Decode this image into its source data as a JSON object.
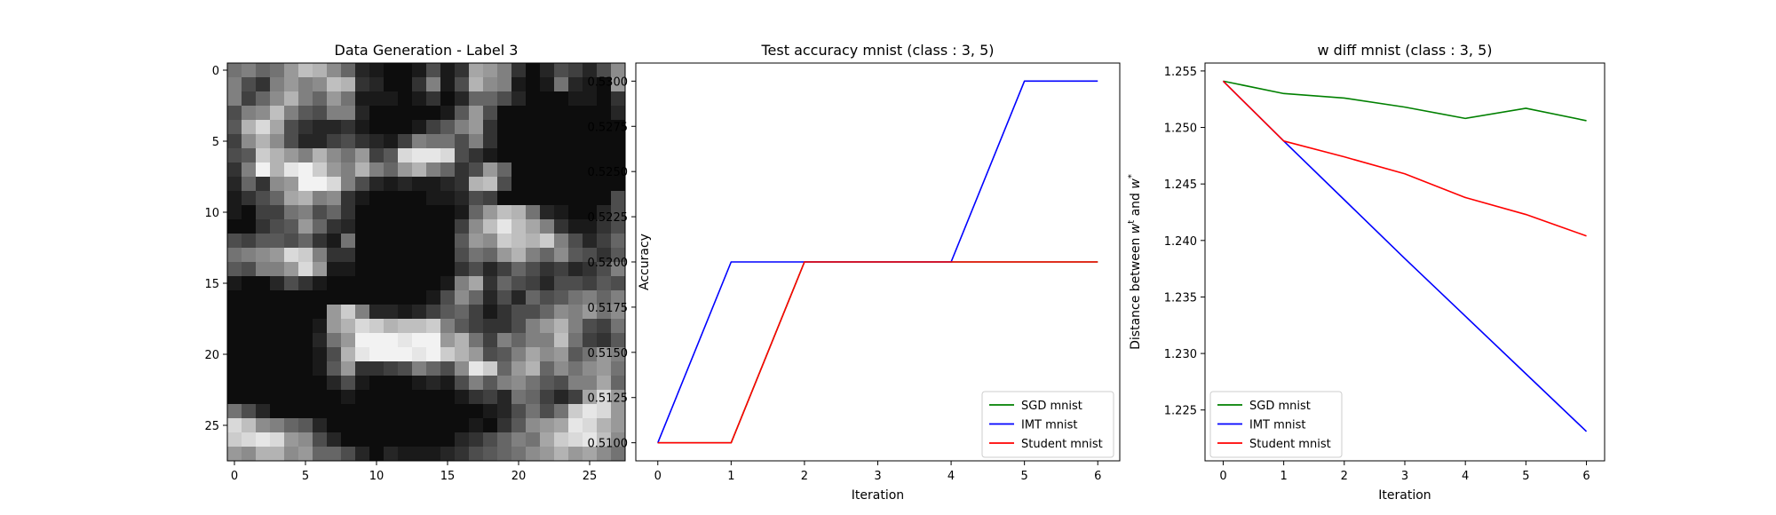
{
  "chart_data": [
    {
      "type": "heatmap",
      "title": "Data Generation - Label 3",
      "xlabel": "",
      "ylabel": "",
      "rows": 28,
      "cols": 28,
      "xticks": [
        0,
        5,
        10,
        15,
        20,
        25
      ],
      "yticks": [
        0,
        5,
        10,
        15,
        20,
        25
      ],
      "colormap": "gray",
      "value_range": [
        0,
        1
      ],
      "grid": false,
      "note_values": "pixel intensities 0 (black) to 1 (white), estimated per cell",
      "values": [
        [
          0.45,
          0.5,
          0.4,
          0.45,
          0.6,
          0.75,
          0.7,
          0.55,
          0.4,
          0.15,
          0.1,
          0.05,
          0.05,
          0.1,
          0.3,
          0.1,
          0.2,
          0.65,
          0.6,
          0.5,
          0.2,
          0.05,
          0.15,
          0.3,
          0.25,
          0.15,
          0.3,
          0.55
        ],
        [
          0.5,
          0.3,
          0.2,
          0.5,
          0.6,
          0.5,
          0.55,
          0.75,
          0.7,
          0.2,
          0.15,
          0.05,
          0.05,
          0.2,
          0.5,
          0.1,
          0.3,
          0.7,
          0.55,
          0.5,
          0.1,
          0.05,
          0.1,
          0.45,
          0.15,
          0.1,
          0.05,
          0.6
        ],
        [
          0.5,
          0.25,
          0.4,
          0.55,
          0.7,
          0.5,
          0.4,
          0.6,
          0.45,
          0.1,
          0.1,
          0.1,
          0.05,
          0.1,
          0.2,
          0.05,
          0.15,
          0.4,
          0.4,
          0.3,
          0.15,
          0.05,
          0.05,
          0.05,
          0.1,
          0.1,
          0.05,
          0.2
        ],
        [
          0.3,
          0.5,
          0.55,
          0.75,
          0.5,
          0.35,
          0.3,
          0.5,
          0.5,
          0.15,
          0.05,
          0.05,
          0.05,
          0.05,
          0.05,
          0.1,
          0.35,
          0.6,
          0.3,
          0.05,
          0.05,
          0.05,
          0.05,
          0.05,
          0.05,
          0.05,
          0.05,
          0.15
        ],
        [
          0.35,
          0.7,
          0.85,
          0.65,
          0.3,
          0.2,
          0.15,
          0.15,
          0.2,
          0.1,
          0.05,
          0.05,
          0.05,
          0.1,
          0.25,
          0.35,
          0.5,
          0.6,
          0.2,
          0.05,
          0.05,
          0.05,
          0.05,
          0.05,
          0.05,
          0.05,
          0.05,
          0.05
        ],
        [
          0.25,
          0.55,
          0.7,
          0.55,
          0.3,
          0.15,
          0.15,
          0.25,
          0.3,
          0.2,
          0.15,
          0.1,
          0.25,
          0.5,
          0.45,
          0.45,
          0.3,
          0.5,
          0.2,
          0.05,
          0.05,
          0.05,
          0.05,
          0.05,
          0.05,
          0.05,
          0.05,
          0.05
        ],
        [
          0.3,
          0.35,
          0.8,
          0.7,
          0.6,
          0.5,
          0.7,
          0.55,
          0.45,
          0.6,
          0.25,
          0.35,
          0.85,
          0.9,
          0.9,
          0.85,
          0.3,
          0.2,
          0.1,
          0.05,
          0.05,
          0.05,
          0.05,
          0.05,
          0.05,
          0.05,
          0.05,
          0.05
        ],
        [
          0.2,
          0.5,
          0.95,
          0.7,
          0.9,
          0.95,
          0.8,
          0.6,
          0.5,
          0.7,
          0.5,
          0.4,
          0.6,
          0.7,
          0.5,
          0.4,
          0.2,
          0.3,
          0.6,
          0.4,
          0.05,
          0.05,
          0.05,
          0.05,
          0.05,
          0.05,
          0.05,
          0.05
        ],
        [
          0.15,
          0.4,
          0.2,
          0.55,
          0.6,
          0.95,
          0.95,
          0.85,
          0.5,
          0.3,
          0.15,
          0.1,
          0.15,
          0.1,
          0.1,
          0.15,
          0.2,
          0.7,
          0.75,
          0.3,
          0.05,
          0.05,
          0.05,
          0.05,
          0.05,
          0.05,
          0.05,
          0.05
        ],
        [
          0.1,
          0.2,
          0.3,
          0.4,
          0.65,
          0.7,
          0.5,
          0.55,
          0.2,
          0.1,
          0.05,
          0.05,
          0.05,
          0.05,
          0.1,
          0.1,
          0.15,
          0.3,
          0.25,
          0.05,
          0.05,
          0.05,
          0.05,
          0.05,
          0.05,
          0.05,
          0.05,
          0.3
        ],
        [
          0.1,
          0.05,
          0.25,
          0.25,
          0.45,
          0.5,
          0.3,
          0.4,
          0.2,
          0.05,
          0.05,
          0.05,
          0.05,
          0.05,
          0.05,
          0.05,
          0.1,
          0.4,
          0.6,
          0.75,
          0.7,
          0.45,
          0.15,
          0.1,
          0.05,
          0.05,
          0.15,
          0.3
        ],
        [
          0.05,
          0.05,
          0.2,
          0.3,
          0.35,
          0.6,
          0.4,
          0.2,
          0.15,
          0.05,
          0.05,
          0.05,
          0.05,
          0.05,
          0.05,
          0.05,
          0.25,
          0.55,
          0.75,
          0.9,
          0.75,
          0.65,
          0.5,
          0.2,
          0.1,
          0.1,
          0.2,
          0.3
        ],
        [
          0.3,
          0.25,
          0.35,
          0.35,
          0.3,
          0.4,
          0.2,
          0.1,
          0.45,
          0.05,
          0.05,
          0.05,
          0.05,
          0.05,
          0.05,
          0.05,
          0.35,
          0.6,
          0.55,
          0.8,
          0.75,
          0.7,
          0.8,
          0.5,
          0.3,
          0.15,
          0.25,
          0.4
        ],
        [
          0.45,
          0.5,
          0.55,
          0.6,
          0.85,
          0.8,
          0.5,
          0.2,
          0.2,
          0.05,
          0.05,
          0.05,
          0.05,
          0.05,
          0.05,
          0.05,
          0.3,
          0.45,
          0.4,
          0.6,
          0.7,
          0.5,
          0.4,
          0.55,
          0.35,
          0.3,
          0.2,
          0.35
        ],
        [
          0.35,
          0.3,
          0.5,
          0.5,
          0.6,
          0.85,
          0.6,
          0.1,
          0.1,
          0.05,
          0.05,
          0.05,
          0.05,
          0.05,
          0.05,
          0.05,
          0.2,
          0.3,
          0.15,
          0.25,
          0.4,
          0.3,
          0.2,
          0.25,
          0.15,
          0.2,
          0.3,
          0.5
        ],
        [
          0.1,
          0.05,
          0.05,
          0.15,
          0.3,
          0.2,
          0.1,
          0.05,
          0.05,
          0.05,
          0.05,
          0.05,
          0.05,
          0.05,
          0.05,
          0.1,
          0.5,
          0.65,
          0.2,
          0.4,
          0.3,
          0.25,
          0.15,
          0.3,
          0.3,
          0.25,
          0.35,
          0.3
        ],
        [
          0.05,
          0.05,
          0.05,
          0.05,
          0.05,
          0.05,
          0.05,
          0.05,
          0.05,
          0.05,
          0.05,
          0.05,
          0.05,
          0.05,
          0.1,
          0.3,
          0.55,
          0.4,
          0.15,
          0.3,
          0.15,
          0.4,
          0.3,
          0.35,
          0.45,
          0.5,
          0.4,
          0.5
        ],
        [
          0.05,
          0.05,
          0.05,
          0.05,
          0.05,
          0.05,
          0.05,
          0.6,
          0.8,
          0.5,
          0.15,
          0.15,
          0.1,
          0.15,
          0.25,
          0.35,
          0.4,
          0.25,
          0.1,
          0.2,
          0.3,
          0.3,
          0.4,
          0.55,
          0.5,
          0.6,
          0.45,
          0.55
        ],
        [
          0.05,
          0.05,
          0.05,
          0.05,
          0.05,
          0.05,
          0.1,
          0.6,
          0.7,
          0.85,
          0.8,
          0.7,
          0.75,
          0.75,
          0.8,
          0.5,
          0.35,
          0.25,
          0.2,
          0.2,
          0.3,
          0.5,
          0.6,
          0.7,
          0.5,
          0.3,
          0.25,
          0.45
        ],
        [
          0.05,
          0.05,
          0.05,
          0.05,
          0.05,
          0.05,
          0.15,
          0.45,
          0.6,
          0.95,
          0.95,
          0.95,
          0.9,
          0.95,
          0.95,
          0.6,
          0.7,
          0.45,
          0.25,
          0.5,
          0.4,
          0.5,
          0.5,
          0.75,
          0.45,
          0.25,
          0.2,
          0.35
        ],
        [
          0.05,
          0.05,
          0.05,
          0.05,
          0.05,
          0.05,
          0.1,
          0.3,
          0.7,
          0.9,
          0.95,
          0.95,
          0.95,
          0.9,
          0.95,
          0.8,
          0.7,
          0.6,
          0.3,
          0.35,
          0.5,
          0.65,
          0.55,
          0.6,
          0.35,
          0.45,
          0.6,
          0.5
        ],
        [
          0.05,
          0.05,
          0.05,
          0.05,
          0.05,
          0.05,
          0.1,
          0.35,
          0.6,
          0.2,
          0.2,
          0.25,
          0.3,
          0.5,
          0.4,
          0.3,
          0.55,
          0.9,
          0.8,
          0.4,
          0.6,
          0.7,
          0.4,
          0.55,
          0.45,
          0.55,
          0.6,
          0.45
        ],
        [
          0.05,
          0.05,
          0.05,
          0.05,
          0.05,
          0.05,
          0.05,
          0.15,
          0.3,
          0.1,
          0.05,
          0.05,
          0.05,
          0.1,
          0.15,
          0.1,
          0.3,
          0.5,
          0.35,
          0.5,
          0.55,
          0.45,
          0.35,
          0.3,
          0.5,
          0.5,
          0.65,
          0.4
        ],
        [
          0.05,
          0.05,
          0.05,
          0.05,
          0.05,
          0.05,
          0.05,
          0.05,
          0.1,
          0.05,
          0.05,
          0.05,
          0.05,
          0.05,
          0.05,
          0.05,
          0.1,
          0.2,
          0.25,
          0.15,
          0.45,
          0.4,
          0.25,
          0.15,
          0.25,
          0.65,
          0.85,
          0.6
        ],
        [
          0.45,
          0.3,
          0.15,
          0.05,
          0.05,
          0.05,
          0.05,
          0.05,
          0.05,
          0.05,
          0.05,
          0.05,
          0.05,
          0.05,
          0.05,
          0.05,
          0.05,
          0.05,
          0.1,
          0.15,
          0.3,
          0.45,
          0.3,
          0.45,
          0.8,
          0.9,
          0.85,
          0.6
        ],
        [
          0.85,
          0.75,
          0.55,
          0.5,
          0.4,
          0.35,
          0.15,
          0.05,
          0.05,
          0.05,
          0.05,
          0.05,
          0.05,
          0.05,
          0.05,
          0.05,
          0.05,
          0.1,
          0.05,
          0.2,
          0.35,
          0.55,
          0.6,
          0.65,
          0.9,
          0.85,
          0.7,
          0.6
        ],
        [
          0.8,
          0.85,
          0.9,
          0.85,
          0.6,
          0.55,
          0.3,
          0.15,
          0.05,
          0.05,
          0.05,
          0.05,
          0.05,
          0.05,
          0.05,
          0.05,
          0.15,
          0.2,
          0.3,
          0.4,
          0.5,
          0.45,
          0.65,
          0.8,
          0.85,
          0.9,
          0.75,
          0.55
        ],
        [
          0.6,
          0.55,
          0.7,
          0.7,
          0.55,
          0.6,
          0.4,
          0.4,
          0.3,
          0.15,
          0.05,
          0.15,
          0.1,
          0.1,
          0.1,
          0.15,
          0.2,
          0.3,
          0.35,
          0.4,
          0.45,
          0.55,
          0.6,
          0.7,
          0.6,
          0.65,
          0.55,
          0.45
        ]
      ]
    },
    {
      "type": "line",
      "title": "Test accuracy mnist (class : 3, 5)",
      "xlabel": "Iteration",
      "ylabel": "Accuracy",
      "x": [
        0,
        1,
        2,
        3,
        4,
        5,
        6
      ],
      "xlim": [
        -0.3,
        6.3
      ],
      "ylim": [
        0.509,
        0.531
      ],
      "xticks": [
        "0",
        "1",
        "2",
        "3",
        "4",
        "5",
        "6"
      ],
      "yticks": [
        "0.5100",
        "0.5125",
        "0.5150",
        "0.5175",
        "0.5200",
        "0.5225",
        "0.5250",
        "0.5275",
        "0.5300"
      ],
      "grid": false,
      "legend_position": "lower-right",
      "series": [
        {
          "name": "SGD mnist",
          "color": "#008000",
          "values": [
            0.51,
            0.51,
            0.52,
            0.52,
            0.52,
            0.52,
            0.52
          ]
        },
        {
          "name": "IMT mnist",
          "color": "#0000ff",
          "values": [
            0.51,
            0.52,
            0.52,
            0.52,
            0.52,
            0.53,
            0.53
          ]
        },
        {
          "name": "Student mnist",
          "color": "#ff0000",
          "values": [
            0.51,
            0.51,
            0.52,
            0.52,
            0.52,
            0.52,
            0.52
          ]
        }
      ]
    },
    {
      "type": "line",
      "title": "w diff mnist (class : 3, 5)",
      "xlabel": "Iteration",
      "ylabel": "Distance between w^t and w^*",
      "x": [
        0,
        1,
        2,
        3,
        4,
        5,
        6
      ],
      "xlim": [
        -0.3,
        6.3
      ],
      "ylim": [
        1.2205,
        1.2557
      ],
      "xticks": [
        "0",
        "1",
        "2",
        "3",
        "4",
        "5",
        "6"
      ],
      "yticks": [
        "1.225",
        "1.230",
        "1.235",
        "1.240",
        "1.245",
        "1.250",
        "1.255"
      ],
      "grid": false,
      "legend_position": "lower-left",
      "series": [
        {
          "name": "SGD mnist",
          "color": "#008000",
          "values": [
            1.2541,
            1.253,
            1.2526,
            1.2518,
            1.2508,
            1.2517,
            1.2506
          ]
        },
        {
          "name": "IMT mnist",
          "color": "#0000ff",
          "values": [
            1.2541,
            1.2488,
            1.2436,
            1.2384,
            1.2333,
            1.2282,
            1.2231
          ]
        },
        {
          "name": "Student mnist",
          "color": "#ff0000",
          "values": [
            1.2541,
            1.2488,
            1.2474,
            1.2459,
            1.2438,
            1.2423,
            1.2404
          ]
        }
      ]
    }
  ]
}
